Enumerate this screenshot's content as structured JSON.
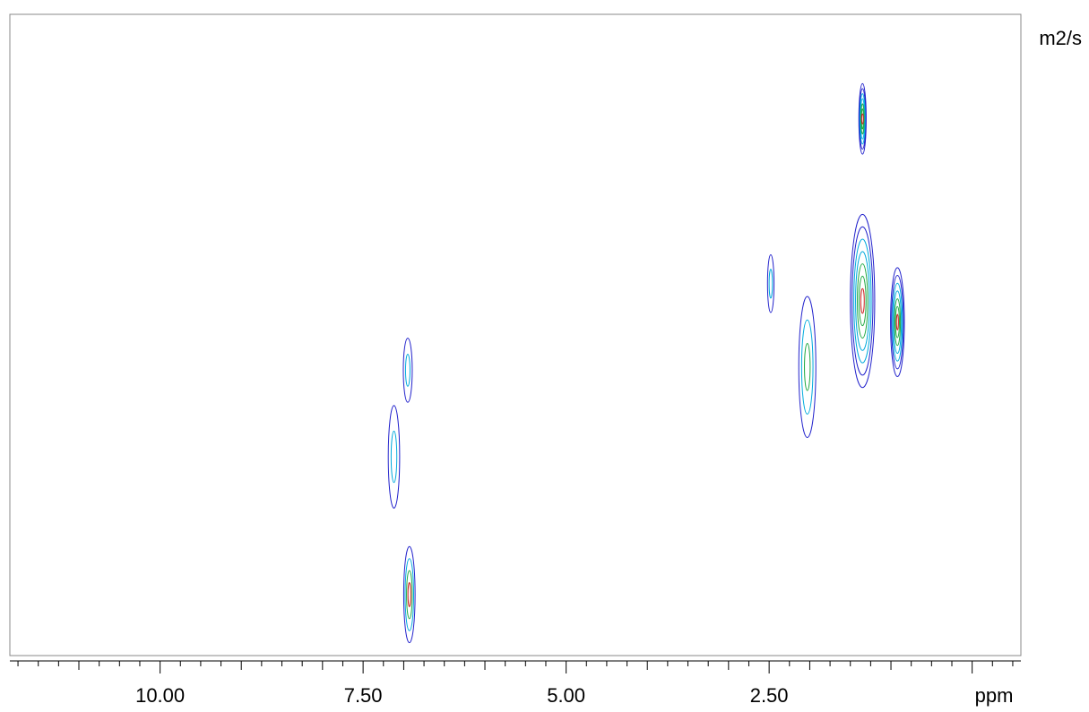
{
  "chart_data": {
    "type": "contour",
    "x_axis": {
      "unit": "ppm",
      "reversed": true,
      "range": [
        11.85,
        -0.6
      ],
      "major_ticks": [
        10.0,
        7.5,
        5.0,
        2.5,
        0.0
      ],
      "labeled_ticks": [
        {
          "value": 10.0,
          "label": "10.00"
        },
        {
          "value": 7.5,
          "label": "7.50"
        },
        {
          "value": 5.0,
          "label": "5.00"
        },
        {
          "value": 2.5,
          "label": "2.50"
        }
      ],
      "minor_tick_step": 0.25
    },
    "y_axis": {
      "unit": "m2/s",
      "tick_labels_shown": false,
      "range": [
        0,
        1
      ]
    },
    "grid": false,
    "contour_colors": [
      "#2222cc",
      "#00aadd",
      "#22aa44",
      "#cc2222"
    ],
    "peaks": [
      {
        "ppm": 1.35,
        "y": 0.837,
        "width": 0.09,
        "height": 0.11,
        "levels": 7
      },
      {
        "ppm": 1.35,
        "y": 0.553,
        "width": 0.3,
        "height": 0.27,
        "levels": 7
      },
      {
        "ppm": 0.92,
        "y": 0.52,
        "width": 0.17,
        "height": 0.17,
        "levels": 7
      },
      {
        "ppm": 2.48,
        "y": 0.58,
        "width": 0.08,
        "height": 0.09,
        "levels": 2
      },
      {
        "ppm": 2.03,
        "y": 0.45,
        "width": 0.21,
        "height": 0.22,
        "levels": 3
      },
      {
        "ppm": 6.95,
        "y": 0.445,
        "width": 0.11,
        "height": 0.1,
        "levels": 2
      },
      {
        "ppm": 7.12,
        "y": 0.31,
        "width": 0.14,
        "height": 0.16,
        "levels": 2
      },
      {
        "ppm": 6.93,
        "y": 0.095,
        "width": 0.14,
        "height": 0.15,
        "levels": 4
      }
    ]
  }
}
